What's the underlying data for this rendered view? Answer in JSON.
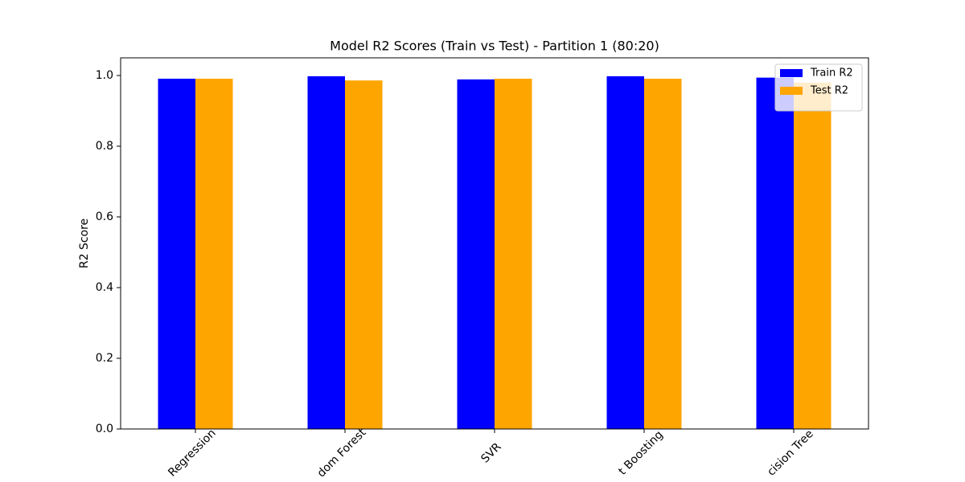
{
  "chart_data": {
    "type": "bar",
    "title": "Model R2 Scores (Train vs Test) - Partition 1 (80:20)",
    "y_label": "R2 Score",
    "categories": [
      "Regression",
      "dom Forest",
      "SVR",
      "t Boosting",
      "cision Tree"
    ],
    "series": [
      {
        "name": "Train R2",
        "color": "#0000ff",
        "values": [
          0.991,
          0.998,
          0.989,
          0.998,
          0.994
        ]
      },
      {
        "name": "Test R2",
        "color": "#ffa500",
        "values": [
          0.991,
          0.986,
          0.991,
          0.991,
          0.98
        ]
      }
    ],
    "ylim": [
      0,
      1.05
    ],
    "yticks": [
      {
        "value": 0,
        "label": "0.0"
      },
      {
        "value": 0.2,
        "label": "0.2"
      },
      {
        "value": 0.4,
        "label": "0.4"
      },
      {
        "value": 0.6,
        "label": "0.6"
      },
      {
        "value": 0.8,
        "label": "0.8"
      },
      {
        "value": 1,
        "label": "1.0"
      }
    ],
    "legend": "upper right"
  }
}
